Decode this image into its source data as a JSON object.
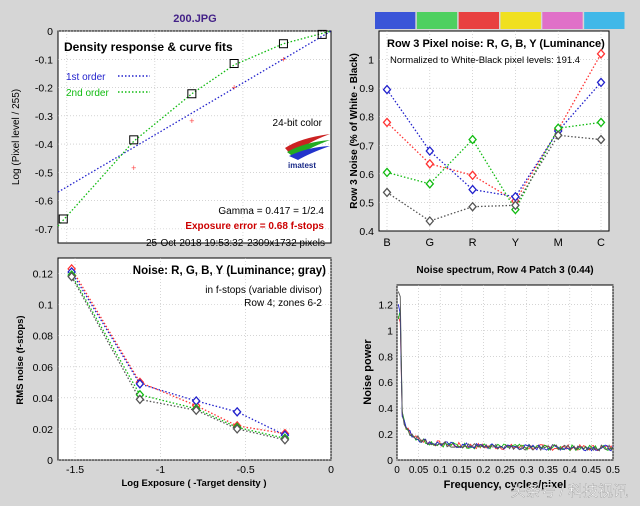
{
  "file_title": "200.JPG",
  "colors": {
    "red": "#ff3333",
    "blue": "#2222cc",
    "green": "#11bb11",
    "gray": "#555555",
    "accent_red": "#cc0000",
    "file_title": "#442288"
  },
  "color_bar": [
    "#3a55d8",
    "#4ed060",
    "#e84040",
    "#f0e020",
    "#e070c8",
    "#40b8e8"
  ],
  "watermark": "头条号 / 科技视讯",
  "chart_data": [
    {
      "id": "density",
      "type": "line",
      "title": "Density response & curve fits",
      "xlabel": "",
      "ylabel": "Log (Pixel level / 255)",
      "xlim": [
        -1.55,
        0
      ],
      "ylim": [
        -0.75,
        0
      ],
      "yticks": [
        "0",
        "-0.1",
        "-0.2",
        "-0.3",
        "-0.4",
        "-0.5",
        "-0.6",
        "-0.7"
      ],
      "yticks_val": [
        0,
        -0.1,
        -0.2,
        -0.3,
        -0.4,
        -0.5,
        -0.6,
        -0.7
      ],
      "legend": [
        {
          "name": "1st order",
          "color": "#2222cc"
        },
        {
          "name": "2nd order",
          "color": "#11bb11"
        }
      ],
      "points": [
        [
          -1.52,
          -0.665
        ],
        [
          -1.12,
          -0.385
        ],
        [
          -0.79,
          -0.222
        ],
        [
          -0.55,
          -0.115
        ],
        [
          -0.27,
          -0.045
        ],
        [
          -0.05,
          -0.012
        ]
      ],
      "red_points": [
        [
          -1.12,
          -0.485
        ],
        [
          -0.79,
          -0.318
        ],
        [
          -0.55,
          -0.2
        ],
        [
          -0.27,
          -0.1
        ]
      ],
      "fit1": [
        [
          -1.55,
          -0.57
        ],
        [
          0,
          0
        ]
      ],
      "fit2": [
        [
          -1.55,
          -0.69
        ],
        [
          -1.12,
          -0.39
        ],
        [
          -0.79,
          -0.222
        ],
        [
          -0.55,
          -0.12
        ],
        [
          -0.27,
          -0.045
        ],
        [
          0,
          0
        ]
      ],
      "color_mode": "24-bit color",
      "logo": "imatest",
      "gamma": "Gamma = 0.417 = 1/2.4",
      "exposure_error": "Exposure error = 0.68 f-stops",
      "date": "25-Oct-2018 19:53:32",
      "pixels": "2309x1732 pixels"
    },
    {
      "id": "row3",
      "type": "line",
      "title": "Row 3 Pixel noise: R, G, B, Y (Luminance)",
      "subtitle": "Normalized to White-Black pixel levels: 191.4",
      "ylabel": "Row 3 Noise (% of White - Black)",
      "categories": [
        "B",
        "G",
        "R",
        "Y",
        "M",
        "C"
      ],
      "ylim": [
        0.4,
        1.1
      ],
      "yticks": [
        "0.4",
        "0.5",
        "0.6",
        "0.7",
        "0.8",
        "0.9",
        "1",
        "1.1"
      ],
      "yticks_val": [
        0.4,
        0.5,
        0.6,
        0.7,
        0.8,
        0.9,
        1,
        1.1
      ],
      "series": [
        {
          "color": "#ff3333",
          "values": [
            0.78,
            0.635,
            0.595,
            0.505,
            0.755,
            1.02
          ]
        },
        {
          "color": "#2222cc",
          "values": [
            0.895,
            0.68,
            0.545,
            0.52,
            0.75,
            0.92
          ]
        },
        {
          "color": "#11bb11",
          "values": [
            0.605,
            0.565,
            0.72,
            0.475,
            0.76,
            0.78
          ]
        },
        {
          "color": "#555555",
          "values": [
            0.535,
            0.435,
            0.485,
            0.49,
            0.735,
            0.72
          ]
        }
      ]
    },
    {
      "id": "noise",
      "type": "line",
      "title": "Noise: R, G, B, Y (Luminance; gray)",
      "note1": "in f-stops (variable divisor)",
      "note2": "Row 4; zones 6-2",
      "xlabel": "Log Exposure ( -Target density )",
      "ylabel": "RMS noise (f-stops)",
      "xlim": [
        -1.6,
        0
      ],
      "ylim": [
        0,
        0.13
      ],
      "xticks": [
        "-1.5",
        "-1",
        "-0.5",
        "0"
      ],
      "xticks_val": [
        -1.5,
        -1,
        -0.5,
        0
      ],
      "yticks": [
        "0",
        "0.02",
        "0.04",
        "0.06",
        "0.08",
        "0.1",
        "0.12"
      ],
      "yticks_val": [
        0,
        0.02,
        0.04,
        0.06,
        0.08,
        0.1,
        0.12
      ],
      "x": [
        -1.52,
        -1.12,
        -0.79,
        -0.55,
        -0.27
      ],
      "series": [
        {
          "color": "#ff3333",
          "values": [
            0.123,
            0.05,
            0.035,
            0.022,
            0.017
          ]
        },
        {
          "color": "#2222cc",
          "values": [
            0.121,
            0.049,
            0.038,
            0.031,
            0.016
          ]
        },
        {
          "color": "#11bb11",
          "values": [
            0.119,
            0.042,
            0.033,
            0.021,
            0.014
          ]
        },
        {
          "color": "#555555",
          "values": [
            0.118,
            0.039,
            0.032,
            0.02,
            0.013
          ]
        }
      ]
    },
    {
      "id": "spectrum",
      "type": "line",
      "title": "Noise spectrum, Row 4 Patch 3 (0.44)",
      "xlabel": "Frequency, cycles/pixel",
      "ylabel": "Noise power",
      "xlim": [
        0,
        0.5
      ],
      "ylim": [
        0,
        1.35
      ],
      "xticks": [
        "0",
        "0.05",
        "0.1",
        "0.15",
        "0.2",
        "0.25",
        "0.3",
        "0.35",
        "0.4",
        "0.45",
        "0.5"
      ],
      "xticks_val": [
        0,
        0.05,
        0.1,
        0.15,
        0.2,
        0.25,
        0.3,
        0.35,
        0.4,
        0.45,
        0.5
      ],
      "yticks": [
        "0",
        "0.2",
        "0.4",
        "0.6",
        "0.8",
        "1",
        "1.2"
      ],
      "yticks_val": [
        0,
        0.2,
        0.4,
        0.6,
        0.8,
        1,
        1.2
      ],
      "series_colors": [
        "#ff3333",
        "#11bb11",
        "#2222cc",
        "#555555"
      ]
    }
  ]
}
